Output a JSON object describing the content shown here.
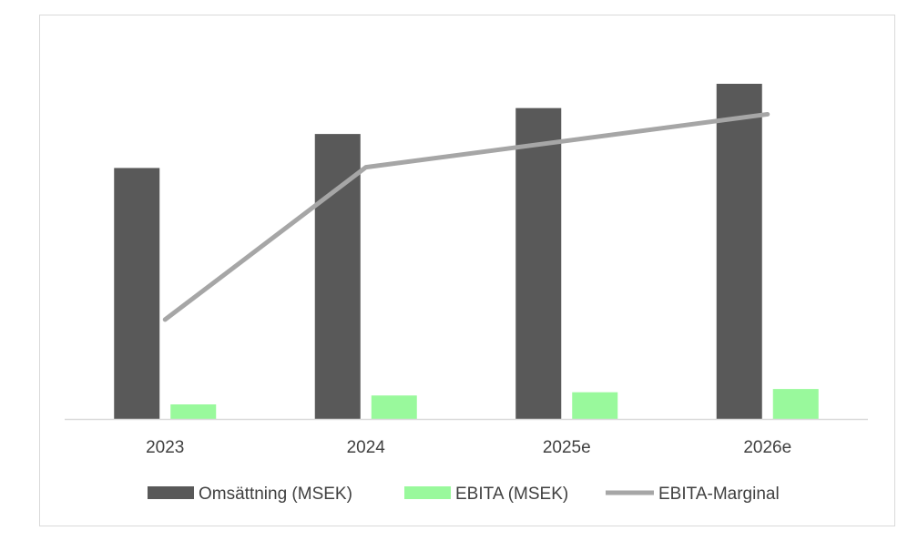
{
  "chart_data": {
    "type": "bar",
    "categories": [
      "2023",
      "2024",
      "2025e",
      "2026e"
    ],
    "series": [
      {
        "name": "Omsättning (MSEK)",
        "kind": "bar",
        "axis": "primary",
        "color": "#595959",
        "values": [
          155,
          176,
          192,
          207
        ]
      },
      {
        "name": "EBITA (MSEK)",
        "kind": "bar",
        "axis": "primary",
        "color": "#99f99c",
        "values": [
          9,
          14.5,
          16.5,
          18.5
        ]
      },
      {
        "name": "EBITA-Marginal",
        "kind": "line",
        "axis": "secondary",
        "color": "#a6a6a6",
        "values": [
          6,
          8.3,
          8.7,
          9.1
        ]
      }
    ],
    "ylim": [
      0,
      225
    ],
    "y2lim": [
      4.5,
      10
    ],
    "y_axis_visible": false,
    "grid": false,
    "legend": "bottom"
  }
}
